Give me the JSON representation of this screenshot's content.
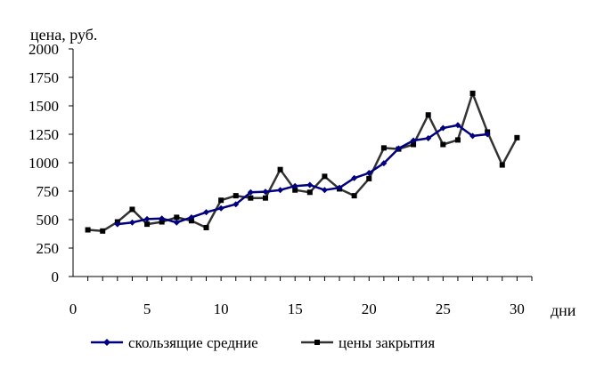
{
  "chart_data": {
    "type": "line",
    "ylabel": "цена, руб.",
    "xlabel": "дни",
    "ylim": [
      0,
      2000
    ],
    "xlim": [
      0,
      31
    ],
    "y_ticks": [
      0,
      250,
      500,
      750,
      1000,
      1250,
      1500,
      1750,
      2000
    ],
    "x_ticks": [
      0,
      5,
      10,
      15,
      20,
      25,
      30
    ],
    "grid": false,
    "legend_position": "bottom",
    "series": [
      {
        "name": "скользящие средние",
        "color": "#000080",
        "marker": "diamond",
        "x": [
          3,
          4,
          5,
          6,
          7,
          8,
          9,
          10,
          11,
          12,
          13,
          14,
          15,
          16,
          17,
          18,
          19,
          20,
          21,
          22,
          23,
          24,
          25,
          26,
          27,
          28
        ],
        "values": [
          460,
          475,
          505,
          510,
          475,
          520,
          565,
          600,
          635,
          740,
          745,
          760,
          795,
          805,
          760,
          780,
          865,
          910,
          995,
          1125,
          1195,
          1215,
          1305,
          1330,
          1235,
          1250
        ]
      },
      {
        "name": "цены закрытия",
        "color": "#333333",
        "marker": "square",
        "x": [
          1,
          2,
          3,
          4,
          5,
          6,
          7,
          8,
          9,
          10,
          11,
          12,
          13,
          14,
          15,
          16,
          17,
          18,
          19,
          20,
          21,
          22,
          23,
          24,
          25,
          26,
          27,
          28,
          29,
          30
        ],
        "values": [
          410,
          400,
          480,
          590,
          460,
          480,
          520,
          490,
          430,
          670,
          710,
          690,
          690,
          940,
          760,
          740,
          880,
          770,
          710,
          860,
          1130,
          1120,
          1160,
          1420,
          1160,
          1200,
          1610,
          1270,
          980,
          1220
        ]
      }
    ]
  }
}
